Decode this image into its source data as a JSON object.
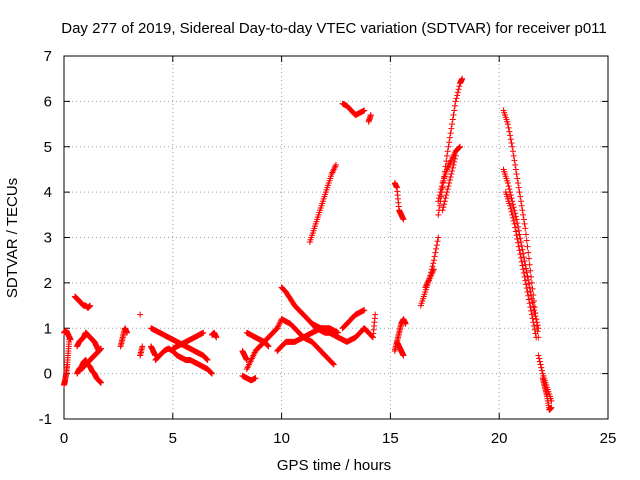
{
  "chart_data": {
    "type": "scatter",
    "title": "Day 277 of 2019, Sidereal Day-to-day VTEC variation (SDTVAR) for receiver p011",
    "xlabel": "GPS time / hours",
    "ylabel": "SDTVAR / TECUs",
    "xlim": [
      0,
      25
    ],
    "ylim": [
      -1,
      7
    ],
    "xticks": [
      0,
      5,
      10,
      15,
      20,
      25
    ],
    "yticks": [
      -1,
      0,
      1,
      2,
      3,
      4,
      5,
      6,
      7
    ],
    "grid": true,
    "marker": "+",
    "color": "#ff0000",
    "series": [
      {
        "name": "SDTVAR",
        "segments": [
          {
            "x": [
              0.0,
              0.05,
              0.1,
              0.15,
              0.2,
              0.25
            ],
            "y": [
              -0.25,
              -0.15,
              0.0,
              0.2,
              0.5,
              0.8
            ]
          },
          {
            "x": [
              0.0,
              0.1,
              0.2,
              0.3
            ],
            "y": [
              0.9,
              0.95,
              0.85,
              0.75
            ]
          },
          {
            "x": [
              0.5,
              0.6,
              0.7,
              0.8,
              0.9,
              1.0,
              1.1,
              1.2
            ],
            "y": [
              1.7,
              1.65,
              1.6,
              1.55,
              1.5,
              1.5,
              1.45,
              1.5
            ]
          },
          {
            "x": [
              0.6,
              0.7,
              0.8,
              0.9,
              1.0,
              1.1,
              1.2,
              1.3,
              1.4,
              1.5,
              1.6,
              1.7
            ],
            "y": [
              0.0,
              0.1,
              0.15,
              0.25,
              0.3,
              0.2,
              0.15,
              0.05,
              0.0,
              -0.1,
              -0.15,
              -0.2
            ]
          },
          {
            "x": [
              0.6,
              0.7,
              0.8,
              0.9,
              1.0,
              1.1,
              1.2,
              1.3,
              1.4,
              1.5,
              1.6
            ],
            "y": [
              0.6,
              0.7,
              0.75,
              0.8,
              0.9,
              0.85,
              0.8,
              0.75,
              0.7,
              0.6,
              0.5
            ]
          },
          {
            "x": [
              0.8,
              0.9,
              1.0,
              1.1,
              1.2,
              1.3,
              1.4,
              1.5,
              1.6,
              1.7
            ],
            "y": [
              0.1,
              0.15,
              0.2,
              0.25,
              0.3,
              0.35,
              0.4,
              0.45,
              0.5,
              0.55
            ]
          },
          {
            "x": [
              2.6,
              2.7,
              2.8,
              2.9
            ],
            "y": [
              0.6,
              0.8,
              1.0,
              0.9
            ]
          },
          {
            "x": [
              3.5
            ],
            "y": [
              1.3
            ]
          },
          {
            "x": [
              3.5,
              3.6
            ],
            "y": [
              0.4,
              0.6
            ]
          },
          {
            "x": [
              4.0,
              4.2,
              4.4,
              4.6,
              4.8,
              5.0,
              5.2,
              5.4,
              5.6,
              5.8,
              6.0,
              6.2,
              6.4,
              6.6
            ],
            "y": [
              1.0,
              0.95,
              0.9,
              0.85,
              0.8,
              0.75,
              0.7,
              0.65,
              0.6,
              0.55,
              0.5,
              0.45,
              0.4,
              0.3
            ]
          },
          {
            "x": [
              4.2,
              4.4,
              4.6,
              4.8,
              5.0,
              5.2,
              5.4,
              5.6,
              5.8,
              6.0,
              6.2,
              6.4,
              6.6,
              6.8
            ],
            "y": [
              0.3,
              0.4,
              0.5,
              0.55,
              0.5,
              0.4,
              0.35,
              0.3,
              0.3,
              0.25,
              0.2,
              0.15,
              0.1,
              0.0
            ]
          },
          {
            "x": [
              4.0,
              4.1,
              4.2
            ],
            "y": [
              0.6,
              0.5,
              0.4
            ]
          },
          {
            "x": [
              5.0,
              5.2,
              5.4,
              5.6,
              5.8,
              6.0,
              6.2,
              6.4
            ],
            "y": [
              0.55,
              0.6,
              0.65,
              0.7,
              0.75,
              0.8,
              0.85,
              0.9
            ]
          },
          {
            "x": [
              6.8,
              6.9,
              7.0
            ],
            "y": [
              0.85,
              0.9,
              0.8
            ]
          },
          {
            "x": [
              8.2,
              8.4,
              8.6,
              8.8
            ],
            "y": [
              -0.05,
              -0.1,
              -0.15,
              -0.1
            ]
          },
          {
            "x": [
              8.2,
              8.3,
              8.4
            ],
            "y": [
              0.5,
              0.4,
              0.3
            ]
          },
          {
            "x": [
              8.4,
              8.6,
              8.8,
              9.0,
              9.2,
              9.4,
              9.6,
              9.8
            ],
            "y": [
              0.1,
              0.3,
              0.5,
              0.6,
              0.7,
              0.8,
              0.9,
              1.0
            ]
          },
          {
            "x": [
              8.4,
              8.6,
              8.8,
              9.0,
              9.2,
              9.4
            ],
            "y": [
              0.9,
              0.85,
              0.8,
              0.75,
              0.7,
              0.6
            ]
          },
          {
            "x": [
              10.0,
              10.2,
              10.4,
              10.6,
              10.8,
              11.0,
              11.2,
              11.4,
              11.6,
              11.8,
              12.0
            ],
            "y": [
              1.9,
              1.8,
              1.65,
              1.5,
              1.4,
              1.3,
              1.2,
              1.1,
              1.05,
              1.0,
              0.95
            ]
          },
          {
            "x": [
              9.8,
              10.0,
              10.2,
              10.4,
              10.6,
              10.8,
              11.0,
              11.2,
              11.4,
              11.6,
              11.8,
              12.0,
              12.2,
              12.4
            ],
            "y": [
              1.0,
              1.2,
              1.15,
              1.1,
              1.0,
              0.9,
              0.8,
              0.75,
              0.7,
              0.6,
              0.5,
              0.4,
              0.3,
              0.2
            ]
          },
          {
            "x": [
              9.8,
              10.0,
              10.2,
              10.4,
              10.6,
              10.8,
              11.0,
              11.2,
              11.4,
              11.6,
              11.8,
              12.0,
              12.2,
              12.4,
              12.6
            ],
            "y": [
              0.5,
              0.6,
              0.7,
              0.7,
              0.7,
              0.75,
              0.8,
              0.85,
              0.9,
              0.95,
              1.0,
              1.0,
              1.0,
              0.95,
              0.9
            ]
          },
          {
            "x": [
              11.4,
              11.6,
              11.8,
              12.0,
              12.2,
              12.4,
              12.6,
              12.8,
              13.0,
              13.2,
              13.4,
              13.6,
              13.8
            ],
            "y": [
              1.1,
              1.0,
              0.95,
              0.9,
              0.9,
              0.85,
              0.8,
              0.75,
              0.7,
              0.75,
              0.8,
              0.9,
              1.0
            ]
          },
          {
            "x": [
              12.8,
              13.0,
              13.2,
              13.4,
              13.6,
              13.8
            ],
            "y": [
              1.0,
              1.1,
              1.2,
              1.3,
              1.35,
              1.4
            ]
          },
          {
            "x": [
              13.8,
              14.0,
              14.2,
              14.3
            ],
            "y": [
              1.0,
              0.9,
              0.8,
              1.3
            ]
          },
          {
            "x": [
              11.3,
              11.5,
              11.7,
              11.9,
              12.1,
              12.3,
              12.5
            ],
            "y": [
              2.9,
              3.2,
              3.5,
              3.8,
              4.1,
              4.4,
              4.6
            ]
          },
          {
            "x": [
              12.8,
              13.0,
              13.2,
              13.4,
              13.6,
              13.8
            ],
            "y": [
              5.95,
              5.9,
              5.8,
              5.7,
              5.75,
              5.8
            ]
          },
          {
            "x": [
              14.0,
              14.1
            ],
            "y": [
              5.55,
              5.7
            ]
          },
          {
            "x": [
              15.2,
              15.3,
              15.4,
              15.5,
              15.6
            ],
            "y": [
              4.2,
              4.1,
              3.6,
              3.5,
              3.4
            ]
          },
          {
            "x": [
              15.2,
              15.3,
              15.4,
              15.5,
              15.6,
              15.7
            ],
            "y": [
              0.5,
              0.7,
              0.9,
              1.1,
              1.2,
              1.1
            ]
          },
          {
            "x": [
              15.3,
              15.4,
              15.5,
              15.6
            ],
            "y": [
              0.7,
              0.6,
              0.5,
              0.4
            ]
          },
          {
            "x": [
              16.4,
              16.6,
              16.8,
              17.0,
              17.2
            ],
            "y": [
              1.5,
              1.8,
              2.1,
              2.5,
              3.0
            ]
          },
          {
            "x": [
              16.6,
              16.8,
              17.0
            ],
            "y": [
              1.9,
              2.1,
              2.3
            ]
          },
          {
            "x": [
              17.2,
              17.4,
              17.6,
              17.8,
              18.0,
              18.2,
              18.3
            ],
            "y": [
              3.5,
              4.1,
              4.8,
              5.4,
              6.0,
              6.4,
              6.5
            ]
          },
          {
            "x": [
              17.2,
              17.4,
              17.6,
              17.8,
              18.0,
              18.2
            ],
            "y": [
              3.8,
              4.2,
              4.5,
              4.7,
              4.9,
              5.0
            ]
          },
          {
            "x": [
              17.4,
              17.6,
              17.8,
              18.0
            ],
            "y": [
              3.6,
              4.0,
              4.4,
              4.8
            ]
          },
          {
            "x": [
              20.2,
              20.4,
              20.6,
              20.8,
              21.0,
              21.2,
              21.4,
              21.6,
              21.8
            ],
            "y": [
              5.8,
              5.5,
              5.0,
              4.4,
              3.8,
              3.2,
              2.4,
              1.6,
              0.8
            ]
          },
          {
            "x": [
              20.2,
              20.4,
              20.6,
              20.8,
              21.0,
              21.2,
              21.4,
              21.6,
              21.8
            ],
            "y": [
              4.5,
              4.2,
              3.8,
              3.4,
              2.9,
              2.4,
              1.9,
              1.4,
              1.0
            ]
          },
          {
            "x": [
              20.3,
              20.5,
              20.7,
              20.9,
              21.1,
              21.3,
              21.5,
              21.7
            ],
            "y": [
              4.0,
              3.7,
              3.3,
              2.8,
              2.3,
              1.8,
              1.3,
              0.8
            ]
          },
          {
            "x": [
              21.8,
              22.0,
              22.2,
              22.4
            ],
            "y": [
              0.4,
              0.0,
              -0.3,
              -0.6
            ]
          },
          {
            "x": [
              22.0,
              22.1,
              22.2,
              22.3,
              22.4
            ],
            "y": [
              -0.1,
              -0.3,
              -0.5,
              -0.8,
              -0.75
            ]
          }
        ]
      }
    ]
  }
}
